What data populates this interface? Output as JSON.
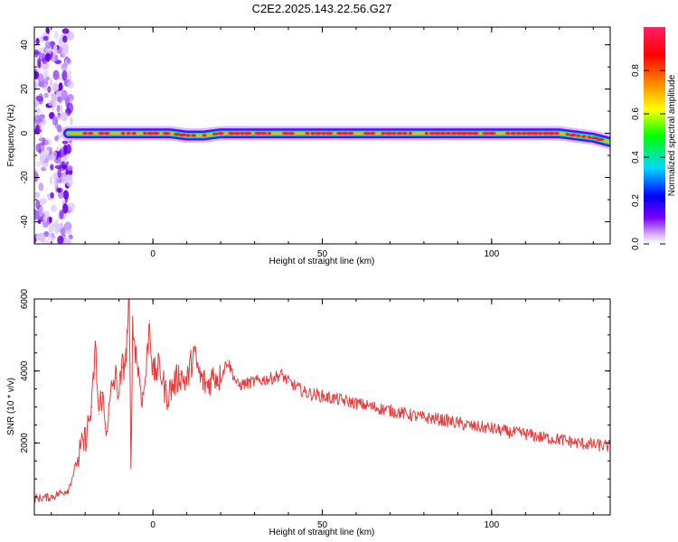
{
  "figure": {
    "title": "C2E2.2025.143.22.56.G27"
  },
  "chart_data": [
    {
      "type": "heatmap",
      "xlabel": "Height of straight line (km)",
      "ylabel": "Frequency (Hz)",
      "xlim": [
        -35,
        135
      ],
      "ylim": [
        -50,
        48
      ],
      "x_ticks": [
        "0",
        "50",
        "100"
      ],
      "y_ticks": [
        "40",
        "20",
        "0",
        "-20",
        "-40"
      ],
      "grid": false,
      "colorbar": {
        "label": "Normalized spectral amplitude",
        "ticks": [
          "0.0",
          "0.2",
          "0.4",
          "0.6",
          "0.8"
        ],
        "range": [
          0,
          1
        ],
        "colormap": [
          "#ffffff",
          "#7b00ff",
          "#0000ff",
          "#00d8ff",
          "#00ff00",
          "#ffff00",
          "#ff8000",
          "#ff0000",
          "#ff2060"
        ]
      },
      "noise_region": {
        "x_range": [
          -35,
          -24
        ],
        "freq_range": [
          -50,
          48
        ]
      },
      "trace": {
        "x": [
          -25,
          -20,
          -15,
          -10,
          -5,
          0,
          5,
          10,
          15,
          20,
          30,
          40,
          50,
          60,
          70,
          80,
          90,
          100,
          110,
          120,
          125,
          130,
          135
        ],
        "freq": [
          0,
          0,
          0,
          0,
          0,
          0,
          0,
          -1,
          -1,
          0,
          0,
          0,
          0,
          0,
          0,
          0,
          0,
          0,
          0,
          0,
          -1,
          -2,
          -4
        ]
      }
    },
    {
      "type": "line",
      "xlabel": "Height of straight line (km)",
      "ylabel": "SNR (10 * v/v)",
      "xlim": [
        -35,
        135
      ],
      "ylim": [
        0,
        6000
      ],
      "x_ticks": [
        "0",
        "50",
        "100"
      ],
      "y_ticks": [
        "6000",
        "4000",
        "2000"
      ],
      "grid": false,
      "color": "#e83c3c",
      "series": [
        {
          "x": [
            -35,
            -30,
            -25,
            -22,
            -20,
            -18,
            -17,
            -16,
            -15,
            -14,
            -13,
            -12,
            -11,
            -10,
            -9,
            -8,
            -7.5,
            -7,
            -6.5,
            -6,
            -5,
            -4,
            -3,
            -2,
            -1,
            0,
            2,
            4,
            6,
            8,
            10,
            12,
            14,
            16,
            18,
            20,
            22,
            25,
            30,
            35,
            38,
            40,
            45,
            50,
            55,
            60,
            65,
            70,
            75,
            80,
            85,
            90,
            95,
            100,
            105,
            110,
            115,
            120,
            125,
            130,
            135
          ],
          "y": [
            450,
            500,
            700,
            1600,
            2100,
            3000,
            4700,
            2800,
            3400,
            2400,
            2800,
            3600,
            3800,
            3400,
            4100,
            4300,
            5200,
            6000,
            1300,
            5200,
            4500,
            3800,
            3200,
            4000,
            5400,
            3900,
            4100,
            3300,
            3600,
            3900,
            3700,
            4500,
            3800,
            3600,
            3900,
            3800,
            4300,
            3600,
            3700,
            3800,
            3900,
            3700,
            3400,
            3300,
            3200,
            3100,
            3000,
            2900,
            2800,
            2700,
            2650,
            2550,
            2450,
            2400,
            2300,
            2250,
            2150,
            2100,
            2000,
            1950,
            1900
          ]
        }
      ]
    }
  ]
}
